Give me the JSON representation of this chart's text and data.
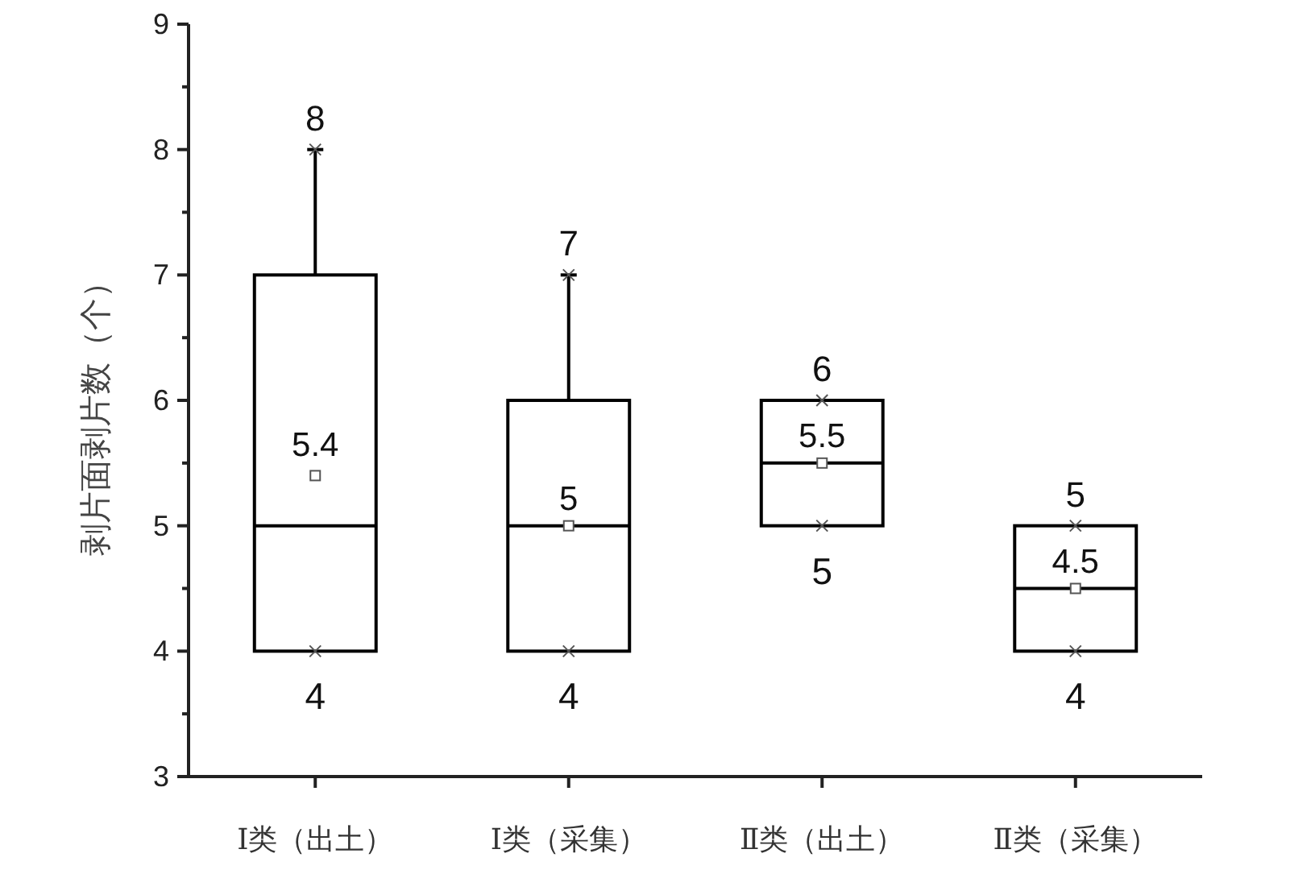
{
  "chart_data": {
    "type": "box",
    "ylabel": "剥片面剥片数（个）",
    "categories": [
      "Ⅰ类（出土）",
      "Ⅰ类（采集）",
      "Ⅱ类（出土）",
      "Ⅱ类（采集）"
    ],
    "boxes": [
      {
        "low": 4,
        "q1": 4,
        "median": 5,
        "q3": 7,
        "high": 8,
        "mean": 5.4
      },
      {
        "low": 4,
        "q1": 4,
        "median": 5,
        "q3": 6,
        "high": 7,
        "mean": 5
      },
      {
        "low": 5,
        "q1": 5,
        "median": 5.5,
        "q3": 6,
        "high": 6,
        "mean": 5.5
      },
      {
        "low": 4,
        "q1": 4,
        "median": 4.5,
        "q3": 5,
        "high": 5,
        "mean": 4.5
      }
    ],
    "color": "#000000",
    "ylim": [
      3,
      9
    ],
    "yticks": [
      3,
      {
        "value": 3.5,
        "label": null
      },
      4,
      {
        "value": 4.5,
        "label": null
      },
      5,
      {
        "value": 5.5,
        "label": null
      },
      6,
      {
        "value": 6.5,
        "label": null
      },
      7,
      {
        "value": 7.5,
        "label": null
      },
      8,
      {
        "value": 8.5,
        "label": null
      },
      9
    ],
    "annotations": [
      {
        "text": "8",
        "x": "Ⅰ类（出土）",
        "y": 8
      },
      "5.4",
      {
        "text": "4",
        "x": "Ⅰ类（出土）",
        "y": 4
      },
      {
        "text": "7",
        "x": "Ⅰ类（采集）",
        "y": 7
      },
      {
        "text": "5",
        "x": "Ⅰ类（采集）",
        "y": 5
      },
      {
        "text": "4",
        "x": "Ⅰ类（采集）",
        "y": 4
      },
      {
        "text": "6",
        "x": "Ⅱ类（出土）",
        "y": 6
      },
      {
        "text": "5.5",
        "x": "Ⅱ类（出土）",
        "y": 5.5
      },
      {
        "text": "5",
        "x": "Ⅱ类（出土）",
        "y": 5
      },
      {
        "text": "5",
        "x": "Ⅱ类（采集）",
        "y": 5
      },
      {
        "text": "4.5",
        "x": "Ⅱ类（采集）",
        "y": 4.5
      },
      {
        "text": "4",
        "x": "Ⅱ类（采集）",
        "y": 4
      }
    ]
  }
}
